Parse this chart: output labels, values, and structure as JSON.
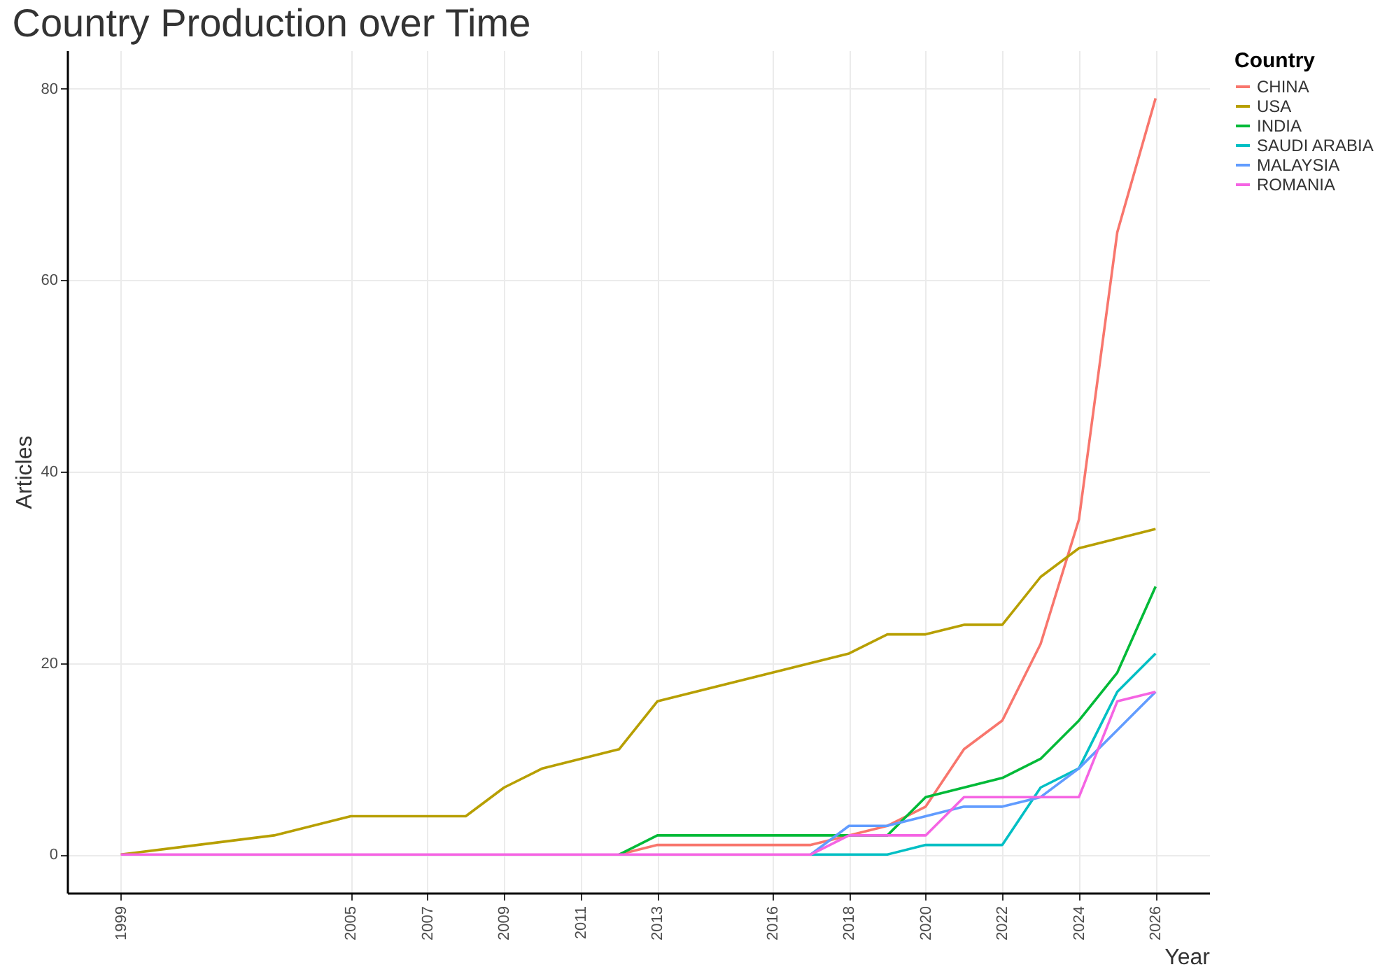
{
  "chart_data": {
    "type": "line",
    "title": "Country Production over Time",
    "xlabel": "Year",
    "ylabel": "Articles",
    "legend_title": "Country",
    "x": [
      1999,
      2000,
      2001,
      2002,
      2003,
      2004,
      2005,
      2006,
      2007,
      2008,
      2009,
      2010,
      2011,
      2012,
      2013,
      2014,
      2015,
      2016,
      2017,
      2018,
      2019,
      2020,
      2021,
      2022,
      2023,
      2024,
      2025,
      2026
    ],
    "series": [
      {
        "name": "CHINA",
        "color": "#f8766d",
        "values": [
          null,
          null,
          null,
          null,
          null,
          null,
          null,
          null,
          null,
          null,
          null,
          null,
          null,
          0,
          1,
          1,
          1,
          1,
          1,
          2,
          3,
          5,
          11,
          14,
          22,
          35,
          65,
          79
        ]
      },
      {
        "name": "USA",
        "color": "#b79f00",
        "x": [
          1999,
          2003,
          2005,
          2008,
          2009,
          2010,
          2011,
          2012,
          2013,
          2018,
          2019,
          2020,
          2021,
          2022,
          2023,
          2024,
          2025,
          2026
        ],
        "values": [
          0,
          2,
          4,
          4,
          7,
          9,
          10,
          11,
          16,
          21,
          23,
          23,
          24,
          24,
          29,
          32,
          33,
          34
        ]
      },
      {
        "name": "INDIA",
        "color": "#00ba38",
        "values": [
          null,
          null,
          null,
          null,
          null,
          null,
          null,
          null,
          null,
          null,
          null,
          null,
          null,
          0,
          2,
          2,
          2,
          2,
          2,
          2,
          2,
          6,
          7,
          8,
          10,
          14,
          19,
          28
        ]
      },
      {
        "name": "SAUDI ARABIA",
        "color": "#00bfc4",
        "values": [
          null,
          null,
          null,
          null,
          null,
          null,
          null,
          null,
          null,
          null,
          null,
          null,
          null,
          null,
          null,
          null,
          null,
          null,
          0,
          0,
          0,
          1,
          1,
          1,
          7,
          9,
          17,
          21
        ]
      },
      {
        "name": "MALAYSIA",
        "color": "#619cff",
        "values": [
          null,
          null,
          null,
          null,
          null,
          null,
          null,
          null,
          null,
          null,
          null,
          null,
          null,
          null,
          null,
          null,
          null,
          null,
          0,
          3,
          3,
          4,
          5,
          5,
          6,
          9,
          13,
          17
        ]
      },
      {
        "name": "ROMANIA",
        "color": "#f564e3",
        "values": [
          0,
          0,
          0,
          0,
          0,
          0,
          0,
          0,
          0,
          0,
          0,
          0,
          0,
          0,
          0,
          0,
          0,
          0,
          0,
          2,
          2,
          2,
          6,
          6,
          6,
          6,
          16,
          17
        ]
      }
    ],
    "xlim": [
      1997.6,
      2027.4
    ],
    "xticks": [
      1999,
      2005,
      2007,
      2009,
      2011,
      2013,
      2016,
      2018,
      2020,
      2022,
      2024,
      2026
    ],
    "ylim": [
      -4,
      84
    ],
    "yticks": [
      0,
      20,
      40,
      60,
      80
    ],
    "grid": true,
    "legend": "right",
    "line_style": "solid",
    "marker": "none"
  }
}
